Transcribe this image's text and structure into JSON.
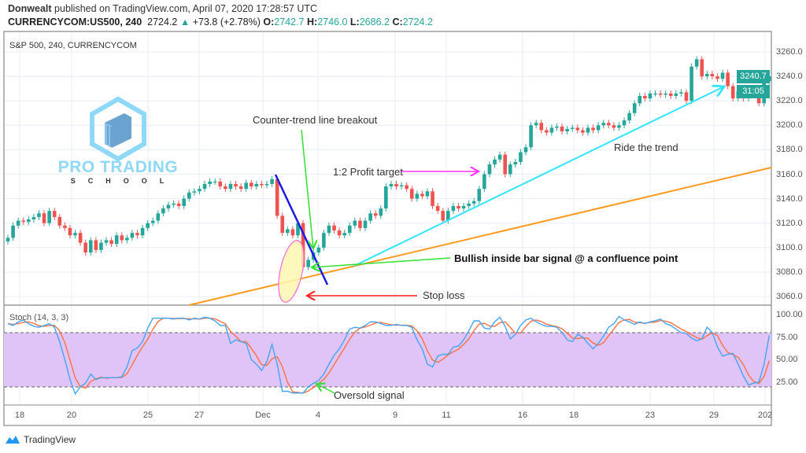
{
  "header": {
    "author": "Donwealt",
    "published": " published on TradingView.com, April 07, 2020 17:28:57 UTC",
    "symbol": "CURRENCYCOM:US500, 240",
    "last": "2724.2",
    "change": "+73.8 (+2.78%)",
    "o_label": "O:",
    "o": "2742.7",
    "h_label": "H:",
    "h": "2746.0",
    "l_label": "L:",
    "l": "2686.2",
    "c_label": "C:",
    "c": "2724.2"
  },
  "pane_title": "S&P 500, 240, CURRENCYCOM",
  "logo": {
    "line1": "PRO TRADING",
    "line2": "SCHOOL"
  },
  "annotations": {
    "breakout": "Counter-trend line breakout",
    "profit": "1:2 Profit target",
    "ride": "Ride the trend",
    "bullish": "Bullish inside bar signal @ a confluence point",
    "stop": "Stop loss",
    "oversold": "Oversold signal"
  },
  "price_tag": "3240.7",
  "countdown": "31:05",
  "footer": {
    "brand": "TradingView"
  },
  "colors": {
    "up": "#26a69a",
    "down": "#ef5350",
    "stoch_k": "#42a5f5",
    "stoch_d": "#ff7043",
    "band": "#e1c4f7"
  },
  "chart_data": [
    {
      "type": "candlestick",
      "title": "S&P 500, 240, CURRENCYCOM",
      "ylim": [
        3050,
        3270
      ],
      "y_ticks": [
        "3260.0",
        "3240.0",
        "3220.0",
        "3200.0",
        "3180.0",
        "3160.0",
        "3140.0",
        "3120.0",
        "3100.0",
        "3080.0",
        "3060.0"
      ],
      "x_ticks": [
        "18",
        "20",
        "25",
        "27",
        "Dec",
        "4",
        "9",
        "11",
        "16",
        "18",
        "23",
        "29",
        "202"
      ],
      "grid": true,
      "closes": [
        3108,
        3118,
        3122,
        3121,
        3123,
        3125,
        3128,
        3120,
        3130,
        3125,
        3118,
        3116,
        3110,
        3112,
        3104,
        3096,
        3106,
        3098,
        3104,
        3106,
        3103,
        3110,
        3106,
        3108,
        3112,
        3110,
        3116,
        3120,
        3122,
        3128,
        3132,
        3135,
        3136,
        3134,
        3140,
        3145,
        3146,
        3148,
        3152,
        3154,
        3154,
        3150,
        3148,
        3152,
        3150,
        3148,
        3153,
        3150,
        3152,
        3151,
        3152,
        3156,
        3126,
        3112,
        3115,
        3110,
        3120,
        3084,
        3090,
        3096,
        3100,
        3112,
        3118,
        3114,
        3110,
        3112,
        3118,
        3122,
        3116,
        3122,
        3128,
        3126,
        3132,
        3150,
        3152,
        3150,
        3151,
        3148,
        3140,
        3144,
        3142,
        3146,
        3134,
        3130,
        3122,
        3130,
        3134,
        3132,
        3134,
        3136,
        3138,
        3148,
        3160,
        3168,
        3172,
        3176,
        3160,
        3168,
        3170,
        3178,
        3182,
        3200,
        3202,
        3196,
        3194,
        3198,
        3199,
        3195,
        3197,
        3198,
        3196,
        3194,
        3198,
        3196,
        3200,
        3202,
        3200,
        3198,
        3200,
        3204,
        3210,
        3218,
        3224,
        3222,
        3226,
        3226,
        3225,
        3226,
        3224,
        3226,
        3227,
        3220,
        3248,
        3254,
        3240,
        3242,
        3240,
        3238,
        3243,
        3232,
        3222,
        3228,
        3222,
        3226,
        3226,
        3218,
        3236,
        3240
      ]
    },
    {
      "type": "line",
      "title": "Stoch (14, 3, 3)",
      "ylim": [
        0,
        110
      ],
      "y_ticks": [
        "100.00",
        "75.00",
        "50.00",
        "25.00"
      ],
      "bands": [
        20,
        80
      ],
      "series": [
        {
          "name": "%K",
          "values": [
            90,
            88,
            92,
            94,
            90,
            87,
            86,
            88,
            90,
            86,
            70,
            50,
            28,
            12,
            20,
            24,
            34,
            28,
            30,
            30,
            30,
            30,
            31,
            42,
            60,
            63,
            70,
            85,
            96,
            96,
            96,
            96,
            95,
            96,
            96,
            94,
            96,
            95,
            97,
            96,
            93,
            88,
            88,
            68,
            72,
            70,
            68,
            50,
            45,
            38,
            48,
            67,
            45,
            15,
            15,
            13,
            13,
            13,
            20,
            24,
            27,
            34,
            45,
            55,
            62,
            72,
            84,
            86,
            85,
            88,
            92,
            92,
            90,
            88,
            88,
            89,
            88,
            88,
            86,
            72,
            62,
            45,
            42,
            54,
            56,
            56,
            64,
            65,
            72,
            82,
            93,
            93,
            85,
            84,
            92,
            97,
            87,
            73,
            78,
            88,
            94,
            96,
            92,
            89,
            87,
            87,
            86,
            80,
            72,
            70,
            78,
            75,
            68,
            62,
            68,
            76,
            86,
            90,
            98,
            94,
            92,
            89,
            92,
            90,
            92,
            93,
            95,
            90,
            88,
            84,
            80,
            79,
            74,
            71,
            73,
            86,
            80,
            64,
            54,
            56,
            57,
            45,
            32,
            22,
            24,
            25,
            45,
            77
          ]
        }
      ]
    }
  ]
}
